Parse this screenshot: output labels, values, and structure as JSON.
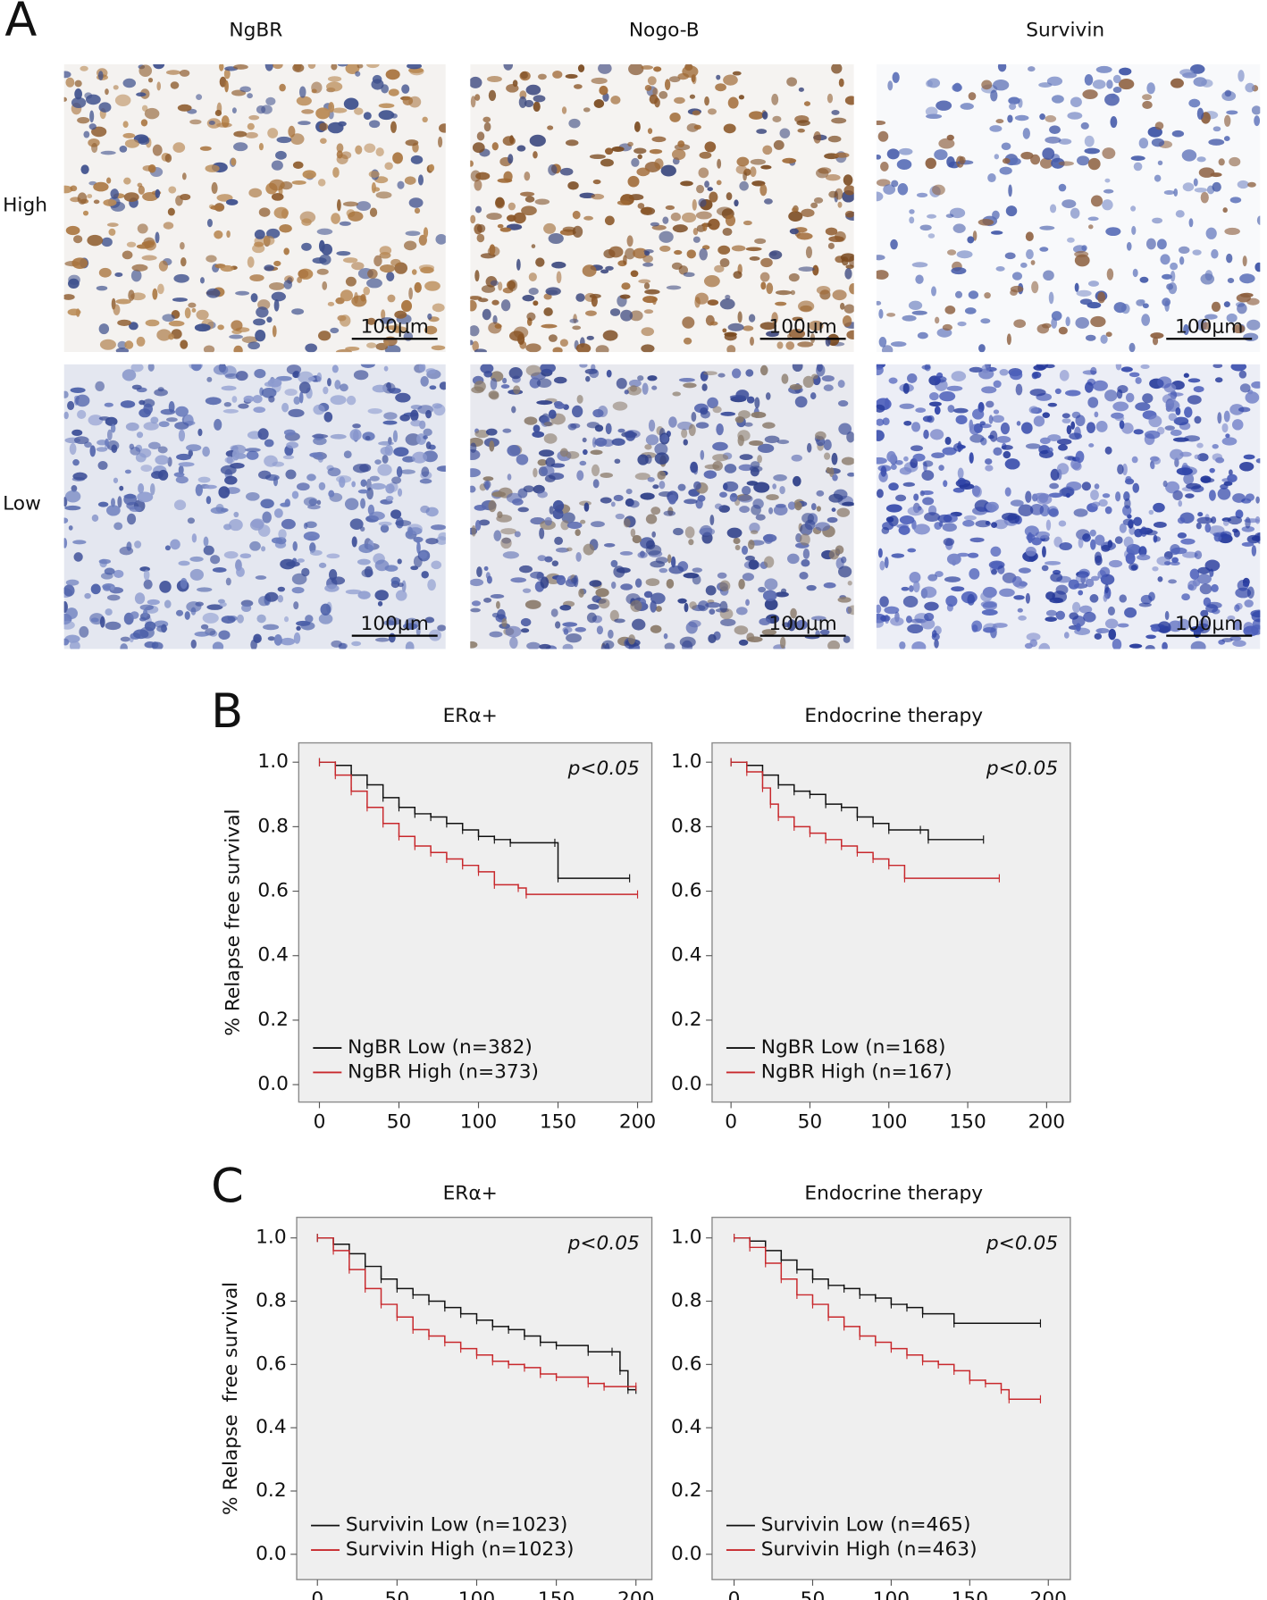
{
  "panel_labels": [
    "A",
    "B",
    "C"
  ],
  "panel_a": {
    "columns": [
      "NgBR",
      "Nogo-B",
      "Survivin"
    ],
    "rows": [
      "High",
      "Low"
    ],
    "scale_bar": "100μm"
  },
  "chart_data": [
    {
      "type": "line",
      "title": "ERα+",
      "ylabel": "% Relapse free survival",
      "annotation": "p<0.05",
      "xlim": [
        -13,
        209
      ],
      "ylim": [
        -0.054,
        1.06
      ],
      "xticks": [
        0,
        50,
        100,
        150,
        200
      ],
      "yticks": [
        {
          "value": 0,
          "label": "0.0"
        },
        0.2,
        0.4,
        0.6,
        0.8,
        {
          "value": 1,
          "label": "1.0"
        }
      ],
      "series": [
        {
          "name": "NgBR Low (n=382)",
          "color": "#111111",
          "x": [
            0,
            10,
            20,
            30,
            40,
            50,
            60,
            70,
            80,
            90,
            100,
            110,
            120,
            148,
            150,
            195
          ],
          "values": [
            1.0,
            0.99,
            0.96,
            0.93,
            0.89,
            0.86,
            0.84,
            0.83,
            0.81,
            0.79,
            0.77,
            0.76,
            0.75,
            0.75,
            0.64,
            0.64
          ]
        },
        {
          "name": "NgBR High (n=373)",
          "color": "#c8282c",
          "x": [
            0,
            10,
            20,
            30,
            40,
            50,
            60,
            70,
            80,
            90,
            100,
            110,
            125,
            130,
            200
          ],
          "values": [
            1.0,
            0.96,
            0.91,
            0.86,
            0.81,
            0.77,
            0.74,
            0.72,
            0.7,
            0.68,
            0.66,
            0.62,
            0.61,
            0.59,
            0.59
          ]
        }
      ]
    },
    {
      "type": "line",
      "title": "Endocrine therapy",
      "annotation": "p<0.05",
      "xlim": [
        -12,
        215
      ],
      "ylim": [
        -0.054,
        1.06
      ],
      "xticks": [
        0,
        50,
        100,
        150,
        200
      ],
      "yticks": [
        {
          "value": 0,
          "label": "0.0"
        },
        0.2,
        0.4,
        0.6,
        0.8,
        {
          "value": 1,
          "label": "1.0"
        }
      ],
      "series": [
        {
          "name": "NgBR Low (n=168)",
          "color": "#111111",
          "x": [
            0,
            10,
            20,
            30,
            40,
            50,
            60,
            70,
            80,
            90,
            100,
            120,
            125,
            160
          ],
          "values": [
            1.0,
            0.99,
            0.96,
            0.93,
            0.91,
            0.9,
            0.87,
            0.86,
            0.83,
            0.81,
            0.79,
            0.79,
            0.76,
            0.76
          ]
        },
        {
          "name": "NgBR High (n=167)",
          "color": "#c8282c",
          "x": [
            0,
            10,
            20,
            25,
            30,
            40,
            50,
            60,
            70,
            80,
            90,
            100,
            110,
            170
          ],
          "values": [
            1.0,
            0.97,
            0.92,
            0.87,
            0.83,
            0.8,
            0.78,
            0.76,
            0.74,
            0.72,
            0.7,
            0.68,
            0.64,
            0.64
          ]
        }
      ]
    },
    {
      "type": "line",
      "title": "ERα+",
      "ylabel": "% Relapse  free survival",
      "annotation": "p<0.05",
      "xlim": [
        -13,
        210
      ],
      "ylim": [
        -0.08,
        1.065
      ],
      "xticks": [
        0,
        50,
        100,
        150,
        200
      ],
      "yticks": [
        {
          "value": 0,
          "label": "0.0"
        },
        0.2,
        0.4,
        0.6,
        0.8,
        {
          "value": 1,
          "label": "1.0"
        }
      ],
      "series": [
        {
          "name": "Survivin Low (n=1023)",
          "color": "#111111",
          "x": [
            0,
            10,
            20,
            30,
            40,
            50,
            60,
            70,
            80,
            90,
            100,
            110,
            120,
            130,
            140,
            150,
            170,
            185,
            190,
            195,
            200
          ],
          "values": [
            1.0,
            0.98,
            0.95,
            0.91,
            0.87,
            0.84,
            0.82,
            0.8,
            0.78,
            0.76,
            0.74,
            0.72,
            0.71,
            0.69,
            0.67,
            0.66,
            0.64,
            0.64,
            0.58,
            0.52,
            0.52
          ]
        },
        {
          "name": "Survivin High (n=1023)",
          "color": "#c8282c",
          "x": [
            0,
            10,
            20,
            30,
            40,
            50,
            60,
            70,
            80,
            90,
            100,
            110,
            120,
            130,
            140,
            150,
            170,
            180,
            200
          ],
          "values": [
            1.0,
            0.96,
            0.9,
            0.84,
            0.79,
            0.75,
            0.71,
            0.69,
            0.67,
            0.65,
            0.63,
            0.61,
            0.6,
            0.59,
            0.57,
            0.56,
            0.54,
            0.53,
            0.53
          ]
        }
      ]
    },
    {
      "type": "line",
      "title": "Endocrine therapy",
      "annotation": "p<0.05",
      "xlim": [
        -14,
        214
      ],
      "ylim": [
        -0.08,
        1.065
      ],
      "xticks": [
        0,
        50,
        100,
        150,
        200
      ],
      "yticks": [
        {
          "value": 0,
          "label": "0.0"
        },
        0.2,
        0.4,
        0.6,
        0.8,
        {
          "value": 1,
          "label": "1.0"
        }
      ],
      "series": [
        {
          "name": "Survivin Low (n=465)",
          "color": "#111111",
          "x": [
            0,
            10,
            20,
            30,
            40,
            50,
            60,
            70,
            80,
            90,
            100,
            110,
            120,
            140,
            195
          ],
          "values": [
            1.0,
            0.99,
            0.96,
            0.93,
            0.9,
            0.87,
            0.85,
            0.84,
            0.82,
            0.81,
            0.79,
            0.78,
            0.76,
            0.73,
            0.73
          ]
        },
        {
          "name": "Survivin High (n=463)",
          "color": "#c8282c",
          "x": [
            0,
            10,
            20,
            30,
            40,
            50,
            60,
            70,
            80,
            90,
            100,
            110,
            120,
            130,
            140,
            150,
            160,
            170,
            175,
            195
          ],
          "values": [
            1.0,
            0.97,
            0.92,
            0.87,
            0.82,
            0.79,
            0.75,
            0.72,
            0.69,
            0.67,
            0.65,
            0.63,
            0.61,
            0.6,
            0.58,
            0.55,
            0.54,
            0.52,
            0.49,
            0.49
          ]
        }
      ]
    }
  ]
}
